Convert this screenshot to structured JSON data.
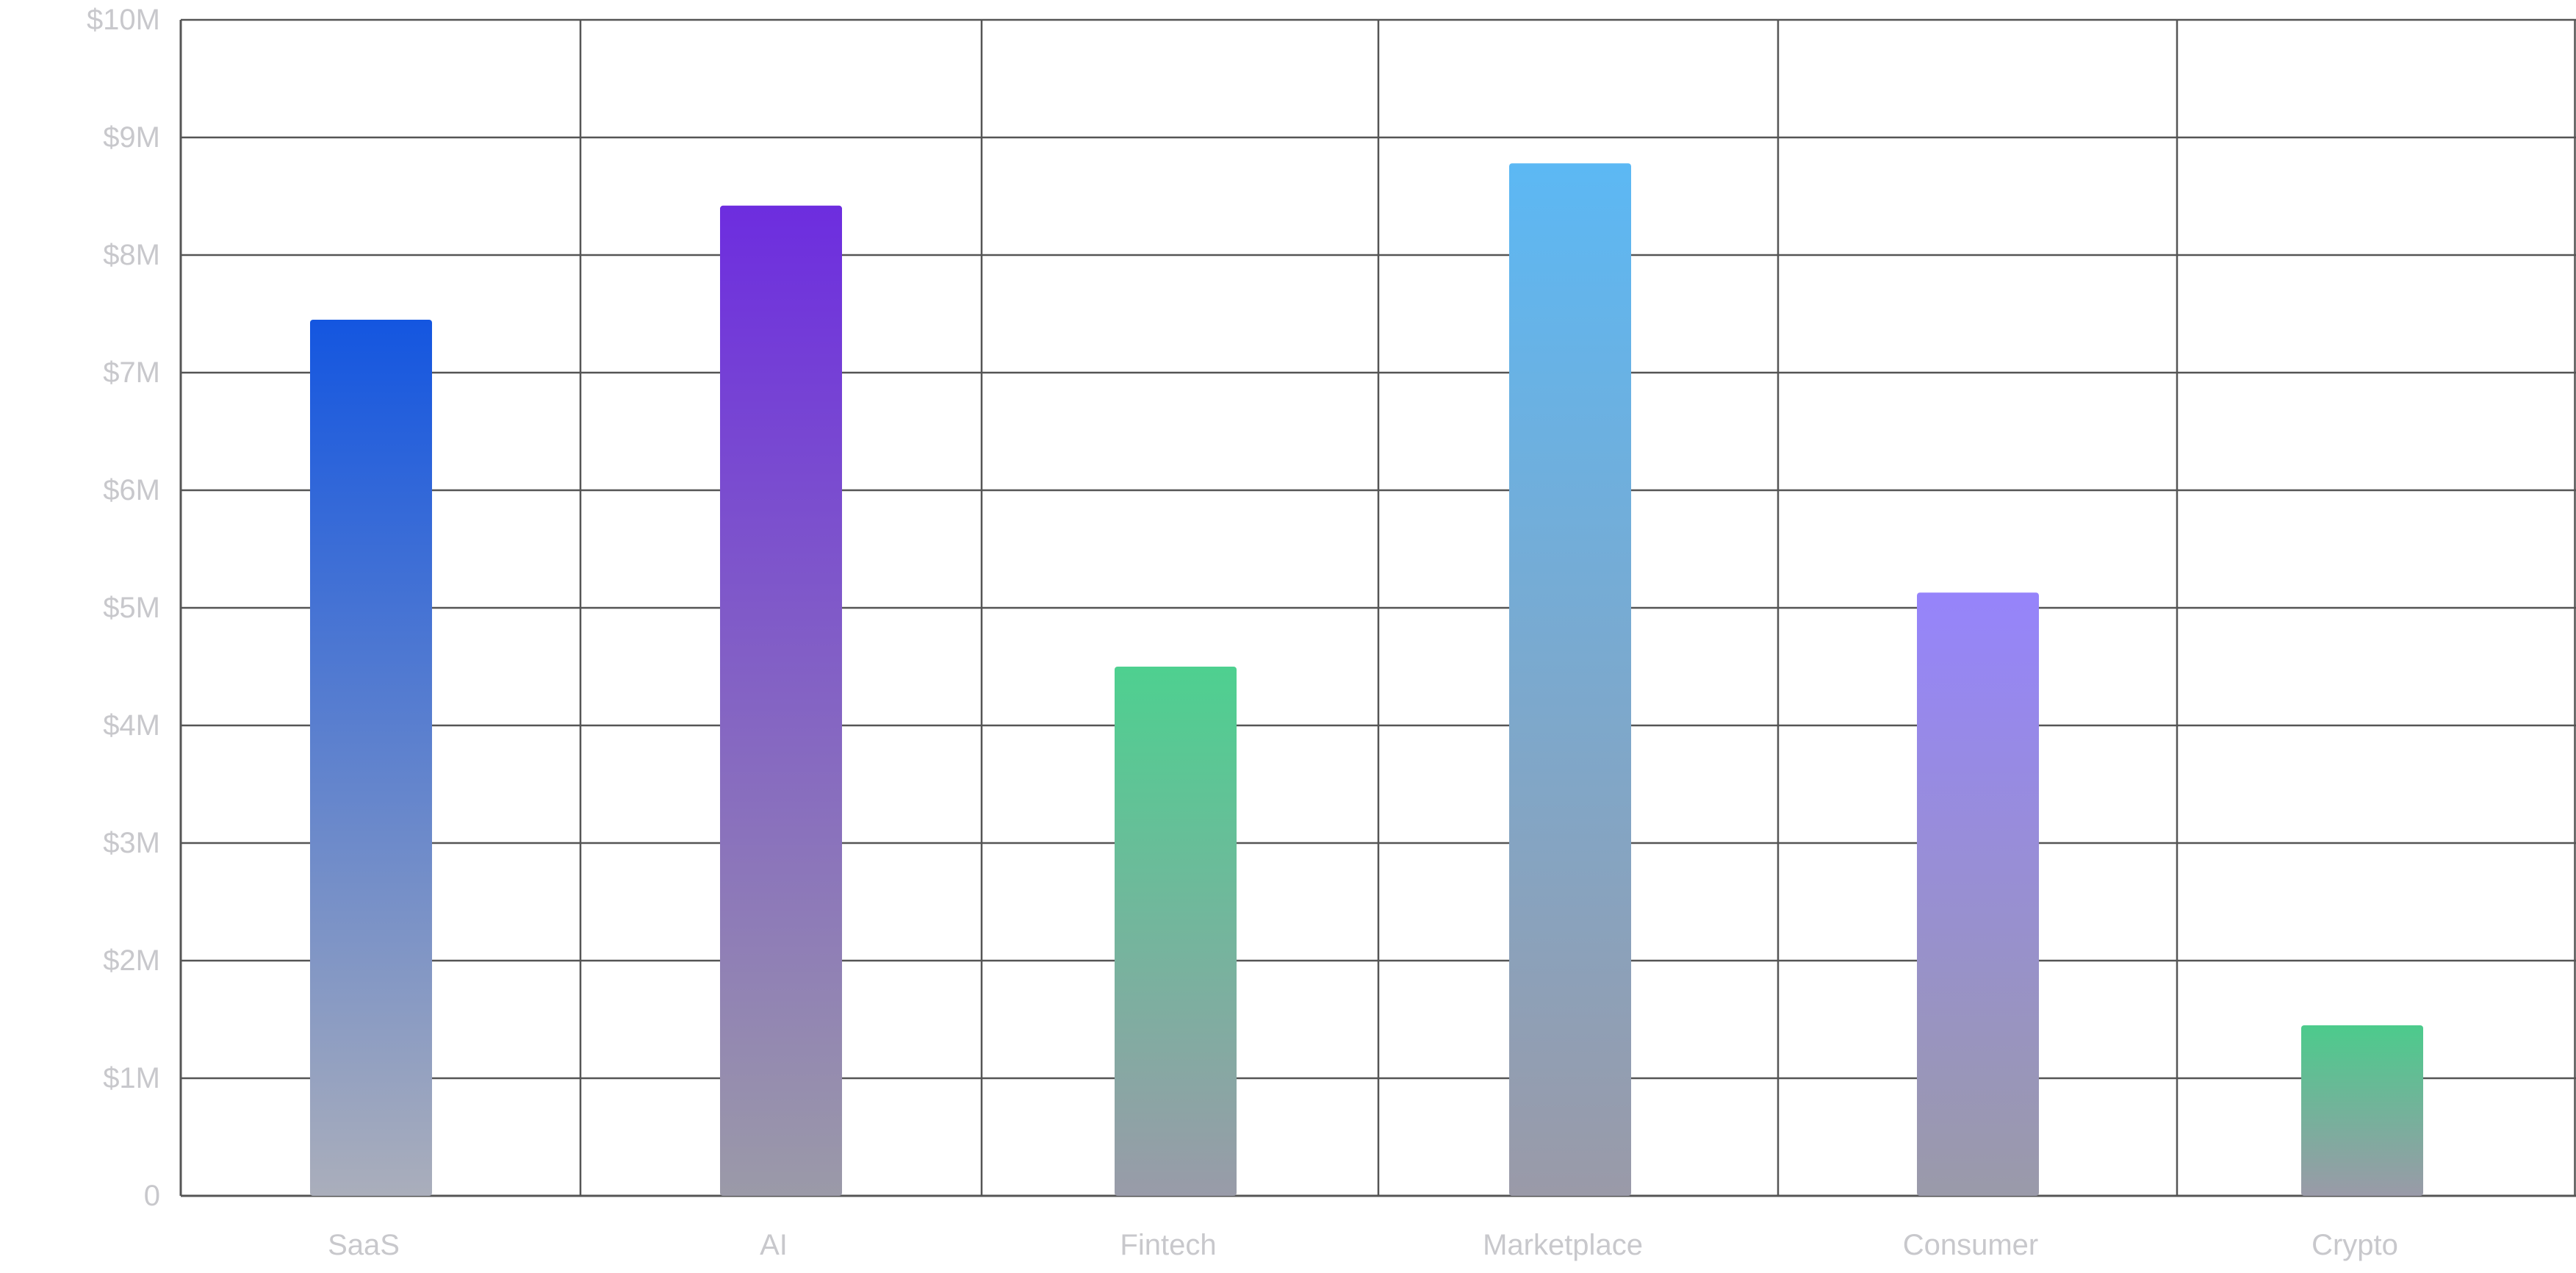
{
  "chart_data": {
    "type": "bar",
    "categories": [
      "SaaS",
      "AI",
      "Fintech",
      "Marketplace",
      "Consumer",
      "Crypto"
    ],
    "values": [
      7.45,
      8.42,
      4.5,
      8.78,
      5.13,
      1.45
    ],
    "y_tick_labels": [
      "0",
      "$1M",
      "$2M",
      "$3M",
      "$4M",
      "$5M",
      "$6M",
      "$7M",
      "$8M",
      "$9M",
      "$10M"
    ],
    "ylim": [
      0,
      10
    ],
    "grid": true,
    "title": "",
    "xlabel": "",
    "ylabel": "",
    "bar_colors": [
      {
        "top": "#1456e0",
        "bottom": "#aaaebb"
      },
      {
        "top": "#6d2ddf",
        "bottom": "#9b9aa8"
      },
      {
        "top": "#4ed090",
        "bottom": "#999ba9"
      },
      {
        "top": "#5cb8f4",
        "bottom": "#9a9aa8"
      },
      {
        "top": "#9684fb",
        "bottom": "#9a9aa9"
      },
      {
        "top": "#4ccb8c",
        "bottom": "#9a9aa8"
      }
    ],
    "grid_color": "#555555",
    "tick_color": "#c8c8cc"
  }
}
